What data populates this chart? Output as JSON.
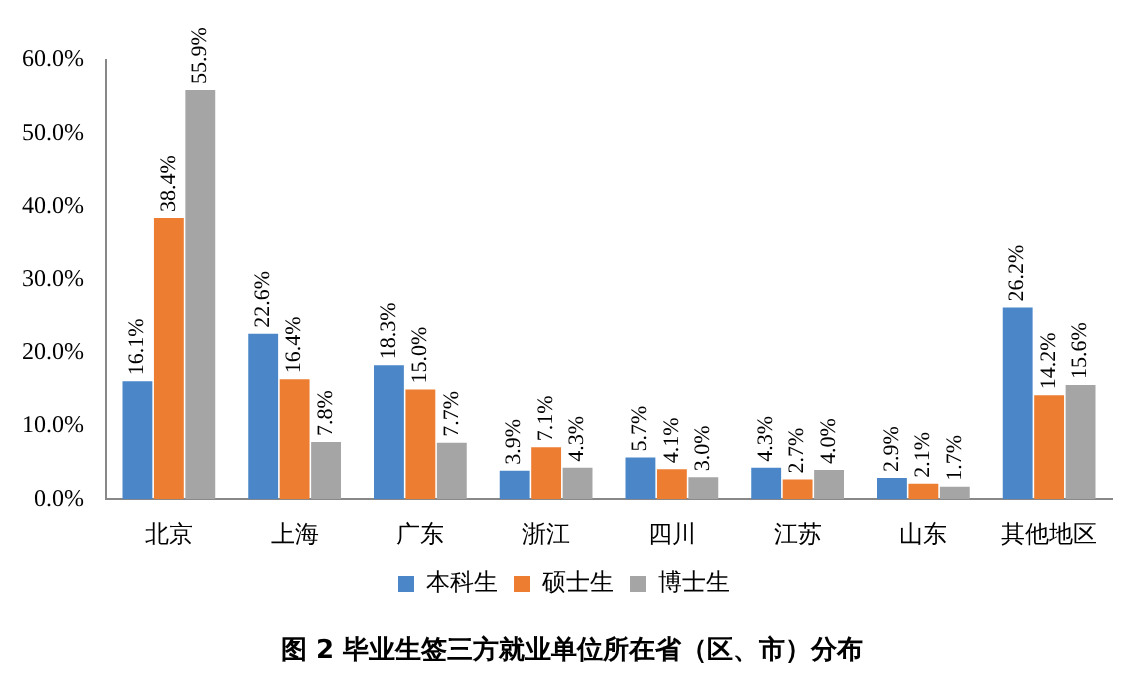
{
  "chart_data": {
    "type": "bar",
    "title": "图 2 毕业生签三方就业单位所在省（区、市）分布",
    "categories": [
      "北京",
      "上海",
      "广东",
      "浙江",
      "四川",
      "江苏",
      "山东",
      "其他地区"
    ],
    "series": [
      {
        "name": "本科生",
        "color": "#4a86c8",
        "values": [
          16.1,
          22.6,
          18.3,
          3.9,
          5.7,
          4.3,
          2.9,
          26.2
        ],
        "value_labels": [
          "16.1%",
          "22.6%",
          "18.3%",
          "3.9%",
          "5.7%",
          "4.3%",
          "2.9%",
          "26.2%"
        ]
      },
      {
        "name": "硕士生",
        "color": "#ed7d31",
        "values": [
          38.4,
          16.4,
          15.0,
          7.1,
          4.1,
          2.7,
          2.1,
          14.2
        ],
        "value_labels": [
          "38.4%",
          "16.4%",
          "15.0%",
          "7.1%",
          "4.1%",
          "2.7%",
          "2.1%",
          "14.2%"
        ]
      },
      {
        "name": "博士生",
        "color": "#a5a5a5",
        "values": [
          55.9,
          7.8,
          7.7,
          4.3,
          3.0,
          4.0,
          1.7,
          15.6
        ],
        "value_labels": [
          "55.9%",
          "7.8%",
          "7.7%",
          "4.3%",
          "3.0%",
          "4.0%",
          "1.7%",
          "15.6%"
        ]
      }
    ],
    "ylim": [
      0,
      60
    ],
    "yticks": [
      {
        "value": 0,
        "label": "0.0%"
      },
      {
        "value": 10,
        "label": "10.0%"
      },
      {
        "value": 20,
        "label": "20.0%"
      },
      {
        "value": 30,
        "label": "30.0%"
      },
      {
        "value": 40,
        "label": "40.0%"
      },
      {
        "value": 50,
        "label": "50.0%"
      },
      {
        "value": 60,
        "label": "60.0%"
      }
    ],
    "grid": false,
    "legend": "bottom"
  }
}
